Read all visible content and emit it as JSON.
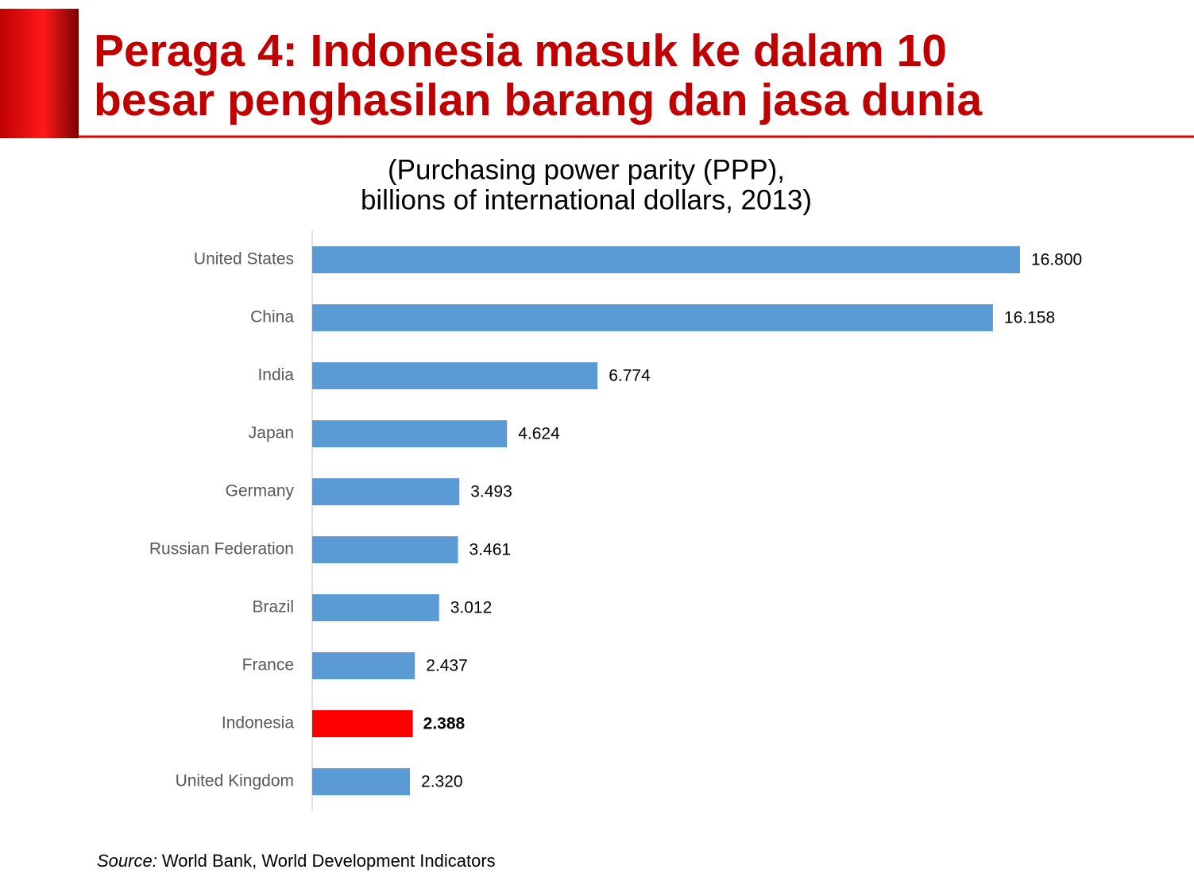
{
  "chart_data": {
    "type": "hbar",
    "title": [
      "Peraga 4: Indonesia masuk ke dalam 10",
      "besar penghasilan barang dan jasa dunia"
    ],
    "subtitle": [
      "(Purchasing power parity (PPP),",
      "billions of international dollars, 2013)"
    ],
    "categories": [
      "United States",
      "China",
      "India",
      "Japan",
      "Germany",
      "Russian Federation",
      "Brazil",
      "France",
      "Indonesia",
      "United Kingdom"
    ],
    "values": [
      16800,
      16158,
      6774,
      4624,
      3493,
      3461,
      3012,
      2437,
      2388,
      2320
    ],
    "value_labels": [
      "16.800",
      "16.158",
      "6.774",
      "4.624",
      "3.493",
      "3.461",
      "3.012",
      "2.437",
      "2.388",
      "2.320"
    ],
    "color": "#5b9bd5",
    "colors": [
      "#5b9bd5",
      "#5b9bd5",
      "#5b9bd5",
      "#5b9bd5",
      "#5b9bd5",
      "#5b9bd5",
      "#5b9bd5",
      "#5b9bd5",
      "#ff0000",
      "#5b9bd5"
    ],
    "xlim": [
      0,
      18000
    ],
    "source_label": "Source:",
    "source": "World Bank, World Development Indicators"
  }
}
